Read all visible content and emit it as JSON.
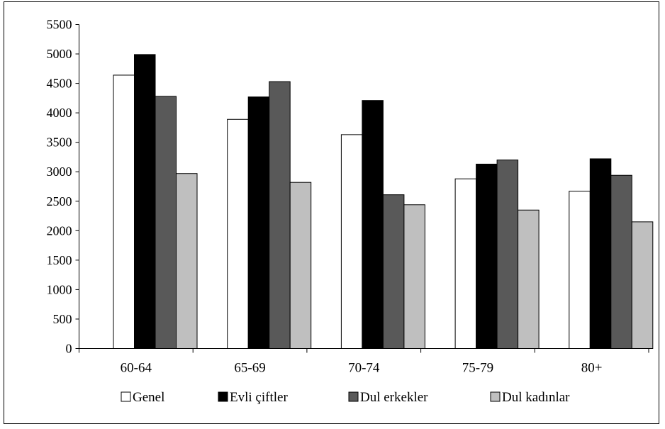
{
  "chart_data": {
    "type": "bar",
    "title": "",
    "xlabel": "",
    "ylabel": "",
    "categories": [
      "60-64",
      "65-69",
      "70-74",
      "75-79",
      "80+"
    ],
    "ylim": [
      0,
      5500
    ],
    "yticks": [
      "0",
      "500",
      "1000",
      "1500",
      "2000",
      "2500",
      "3000",
      "3500",
      "4000",
      "4500",
      "5000",
      "5500"
    ],
    "grid": false,
    "legend_position": "bottom",
    "series": [
      {
        "name": "Genel",
        "color": "#ffffff",
        "values": [
          4640,
          3890,
          3630,
          2880,
          2670
        ]
      },
      {
        "name": "Evli çiftler",
        "color": "#000000",
        "values": [
          4990,
          4270,
          4210,
          3130,
          3220
        ]
      },
      {
        "name": "Dul erkekler",
        "color": "#595959",
        "values": [
          4280,
          4530,
          2610,
          3200,
          2940
        ]
      },
      {
        "name": "Dul kadınlar",
        "color": "#bfbfbf",
        "values": [
          2970,
          2820,
          2440,
          2350,
          2150
        ]
      }
    ]
  }
}
